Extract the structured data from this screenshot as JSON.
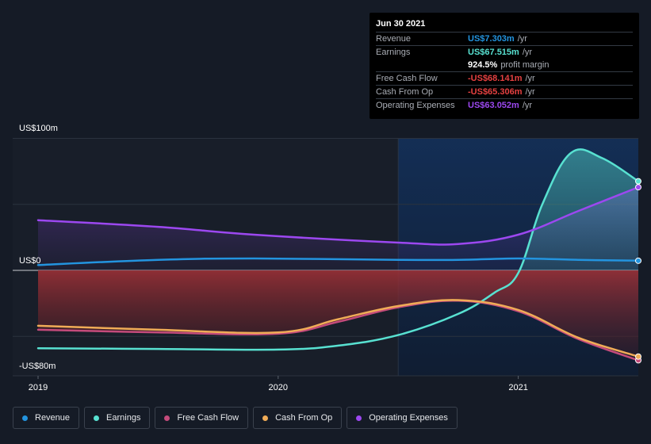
{
  "chart_data": {
    "type": "area",
    "x_ticks": [
      "2019",
      "2020",
      "2021"
    ],
    "y_ticks": [
      "US$100m",
      "US$0",
      "-US$80m"
    ],
    "ylim": [
      -80,
      100
    ],
    "xlim": [
      2019.0,
      2021.5
    ],
    "highlight_start": 2020.5,
    "series": [
      {
        "name": "Revenue",
        "color": "#2394df",
        "points": [
          [
            2019.0,
            4
          ],
          [
            2019.5,
            8
          ],
          [
            2019.9,
            9
          ],
          [
            2020.5,
            8
          ],
          [
            2020.75,
            8
          ],
          [
            2021.0,
            9
          ],
          [
            2021.25,
            8
          ],
          [
            2021.5,
            7.3
          ]
        ]
      },
      {
        "name": "Earnings",
        "color": "#58e1d1",
        "points": [
          [
            2019.0,
            -59
          ],
          [
            2019.5,
            -59.5
          ],
          [
            2020.0,
            -60
          ],
          [
            2020.25,
            -57
          ],
          [
            2020.5,
            -49
          ],
          [
            2020.75,
            -33
          ],
          [
            2020.9,
            -17
          ],
          [
            2021.0,
            -2
          ],
          [
            2021.1,
            50
          ],
          [
            2021.22,
            89
          ],
          [
            2021.35,
            85
          ],
          [
            2021.5,
            67.5
          ]
        ]
      },
      {
        "name": "Free Cash Flow",
        "color": "#c44b7b",
        "points": [
          [
            2019.0,
            -45
          ],
          [
            2019.5,
            -47
          ],
          [
            2020.0,
            -48
          ],
          [
            2020.25,
            -39
          ],
          [
            2020.5,
            -28
          ],
          [
            2020.75,
            -23
          ],
          [
            2021.0,
            -31
          ],
          [
            2021.25,
            -52
          ],
          [
            2021.5,
            -68.1
          ]
        ]
      },
      {
        "name": "Cash From Op",
        "color": "#f0ac57",
        "points": [
          [
            2019.0,
            -42
          ],
          [
            2019.5,
            -45
          ],
          [
            2020.0,
            -47
          ],
          [
            2020.25,
            -37
          ],
          [
            2020.5,
            -27
          ],
          [
            2020.75,
            -22.5
          ],
          [
            2021.0,
            -30
          ],
          [
            2021.25,
            -51
          ],
          [
            2021.5,
            -65.3
          ]
        ]
      },
      {
        "name": "Operating Expenses",
        "color": "#9c48f0",
        "points": [
          [
            2019.0,
            38
          ],
          [
            2019.5,
            33
          ],
          [
            2019.9,
            27
          ],
          [
            2020.5,
            21
          ],
          [
            2020.75,
            20
          ],
          [
            2021.0,
            27
          ],
          [
            2021.25,
            45
          ],
          [
            2021.5,
            63
          ]
        ]
      }
    ]
  },
  "tooltip": {
    "date": "Jun 30 2021",
    "rows": [
      {
        "label": "Revenue",
        "value": "US$7.303m",
        "unit": "/yr",
        "color": "#2394df"
      },
      {
        "label": "Earnings",
        "value": "US$67.515m",
        "unit": "/yr",
        "color": "#58e1d1"
      },
      {
        "label": "",
        "value": "924.5%",
        "unit": "profit margin",
        "color": "#ffffff"
      },
      {
        "label": "Free Cash Flow",
        "value": "-US$68.141m",
        "unit": "/yr",
        "color": "#e64141"
      },
      {
        "label": "Cash From Op",
        "value": "-US$65.306m",
        "unit": "/yr",
        "color": "#e64141"
      },
      {
        "label": "Operating Expenses",
        "value": "US$63.052m",
        "unit": "/yr",
        "color": "#9c48f0"
      }
    ]
  },
  "legend": [
    {
      "label": "Revenue",
      "color": "#2394df"
    },
    {
      "label": "Earnings",
      "color": "#58e1d1"
    },
    {
      "label": "Free Cash Flow",
      "color": "#c44b7b"
    },
    {
      "label": "Cash From Op",
      "color": "#f0ac57"
    },
    {
      "label": "Operating Expenses",
      "color": "#9c48f0"
    }
  ]
}
